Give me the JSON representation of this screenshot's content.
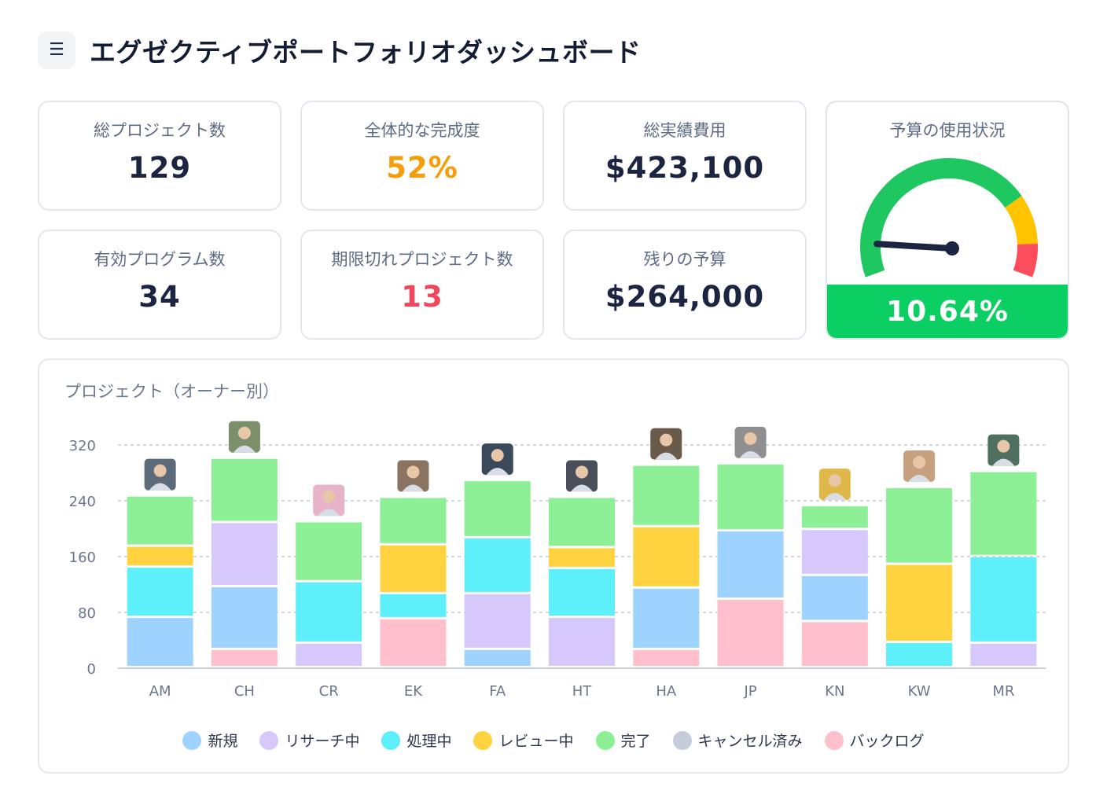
{
  "header": {
    "menu_icon": "hamburger-menu-icon",
    "title": "エグゼクティブポートフォリオダッシュボード"
  },
  "kpis": [
    {
      "label": "総プロジェクト数",
      "value": "129",
      "color": "#1b2440"
    },
    {
      "label": "全体的な完成度",
      "value": "52%",
      "color": "#f59e0b"
    },
    {
      "label": "総実績費用",
      "value": "$423,100",
      "color": "#1b2440"
    },
    {
      "label": "有効プログラム数",
      "value": "34",
      "color": "#1b2440"
    },
    {
      "label": "期限切れプロジェクト数",
      "value": "13",
      "color": "#f0475c"
    },
    {
      "label": "残りの予算",
      "value": "$264,000",
      "color": "#1b2440"
    }
  ],
  "gauge": {
    "label": "予算の使用状況",
    "value_text": "10.64%",
    "value": 10.64,
    "band_color": "#0ccf63",
    "zones": [
      {
        "color": "#1fc760",
        "from": 0,
        "to": 75
      },
      {
        "color": "#ffc300",
        "from": 75,
        "to": 90
      },
      {
        "color": "#fb4d5c",
        "from": 90,
        "to": 100
      }
    ]
  },
  "chart_section": {
    "title": "プロジェクト（オーナー別）"
  },
  "chart_data": {
    "type": "bar",
    "stacked": true,
    "title": "プロジェクト（オーナー別）",
    "categories": [
      "AM",
      "CH",
      "CR",
      "EK",
      "FA",
      "HT",
      "HA",
      "JP",
      "KN",
      "KW",
      "MR"
    ],
    "ylim": [
      0,
      320
    ],
    "yticks": [
      0,
      80,
      160,
      240,
      320
    ],
    "grid": true,
    "legend_position": "bottom",
    "series": [
      {
        "name": "新規",
        "color": "#9fd3ff",
        "values": [
          72,
          0,
          0,
          0,
          26,
          0,
          0,
          0,
          0,
          0,
          0
        ]
      },
      {
        "name": "リサーチ中",
        "color": "#d7c8fb",
        "values": [
          0,
          0,
          35,
          0,
          0,
          72,
          0,
          0,
          0,
          0,
          35
        ]
      },
      {
        "name": "バックログ",
        "color": "#ffc0cb",
        "values": [
          0,
          26,
          0,
          70,
          0,
          0,
          26,
          98,
          66,
          0,
          0
        ]
      },
      {
        "name": "新規",
        "color": "#9fd3ff",
        "values": [
          0,
          90,
          0,
          0,
          0,
          0,
          88,
          98,
          66,
          0,
          0
        ]
      },
      {
        "name": "リサーチ中",
        "color": "#d7c8fb",
        "values": [
          0,
          92,
          0,
          0,
          80,
          0,
          0,
          0,
          66,
          0,
          0
        ]
      },
      {
        "name": "処理中",
        "color": "#5ef0fa",
        "values": [
          72,
          0,
          88,
          36,
          80,
          70,
          0,
          0,
          0,
          36,
          124
        ]
      },
      {
        "name": "レビュー中",
        "color": "#ffd23f",
        "values": [
          30,
          0,
          0,
          70,
          0,
          30,
          88,
          0,
          0,
          112,
          0
        ]
      },
      {
        "name": "完了",
        "color": "#8df097",
        "values": [
          72,
          92,
          86,
          68,
          82,
          72,
          88,
          96,
          34,
          110,
          122
        ]
      },
      {
        "name": "キャンセル済み",
        "color": "#c5cbdb",
        "values": [
          0,
          0,
          0,
          0,
          0,
          0,
          0,
          0,
          0,
          0,
          0
        ]
      }
    ]
  },
  "legend": [
    {
      "label": "新規",
      "color": "#9fd3ff"
    },
    {
      "label": "リサーチ中",
      "color": "#d7c8fb"
    },
    {
      "label": "処理中",
      "color": "#5ef0fa"
    },
    {
      "label": "レビュー中",
      "color": "#ffd23f"
    },
    {
      "label": "完了",
      "color": "#8df097"
    },
    {
      "label": "キャンセル済み",
      "color": "#c5cbdb"
    },
    {
      "label": "バックログ",
      "color": "#ffc0cb"
    }
  ],
  "avatars": [
    "avatar-am",
    "avatar-ch",
    "avatar-cr",
    "avatar-ek",
    "avatar-fa",
    "avatar-ht",
    "avatar-ha",
    "avatar-jp",
    "avatar-kn",
    "avatar-kw",
    "avatar-mr"
  ]
}
